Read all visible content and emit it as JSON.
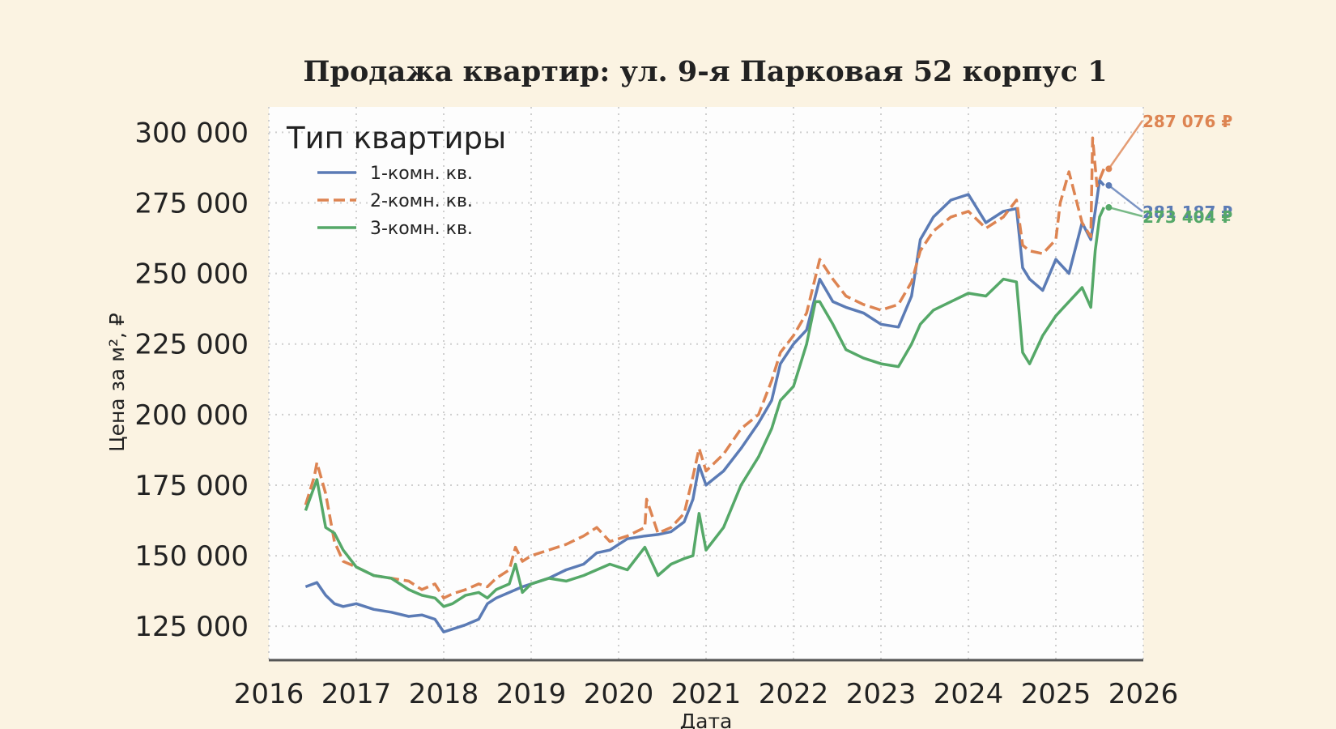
{
  "chart_data": {
    "type": "line",
    "title": "Продажа квартир: ул. 9-я Парковая 52 корпус 1",
    "xlabel": "Дата",
    "ylabel": "Цена за м², ₽",
    "xlim": [
      2016,
      2026
    ],
    "ylim": [
      113000,
      309000
    ],
    "x_ticks": [
      "2016",
      "2017",
      "2018",
      "2019",
      "2020",
      "2021",
      "2022",
      "2023",
      "2024",
      "2025",
      "2026"
    ],
    "y_ticks": [
      {
        "value": 125000,
        "label": "125 000"
      },
      {
        "value": 150000,
        "label": "150 000"
      },
      {
        "value": 175000,
        "label": "175 000"
      },
      {
        "value": 200000,
        "label": "200 000"
      },
      {
        "value": 225000,
        "label": "225 000"
      },
      {
        "value": 250000,
        "label": "250 000"
      },
      {
        "value": 275000,
        "label": "275 000"
      },
      {
        "value": 300000,
        "label": "300 000"
      }
    ],
    "grid": true,
    "legend": {
      "title": "Тип квартиры",
      "position": "top-left"
    },
    "series": [
      {
        "name": "1-комн. кв.",
        "color": "#5b7bb5",
        "dash": "solid",
        "x": [
          2016.42,
          2016.55,
          2016.65,
          2016.75,
          2016.85,
          2017.0,
          2017.2,
          2017.4,
          2017.6,
          2017.75,
          2017.9,
          2018.0,
          2018.1,
          2018.25,
          2018.4,
          2018.5,
          2018.6,
          2018.75,
          2018.9,
          2019.0,
          2019.2,
          2019.4,
          2019.6,
          2019.75,
          2019.9,
          2020.1,
          2020.3,
          2020.45,
          2020.6,
          2020.75,
          2020.85,
          2020.92,
          2021.0,
          2021.2,
          2021.4,
          2021.6,
          2021.75,
          2021.85,
          2022.0,
          2022.15,
          2022.3,
          2022.45,
          2022.6,
          2022.8,
          2023.0,
          2023.2,
          2023.35,
          2023.45,
          2023.6,
          2023.8,
          2024.0,
          2024.2,
          2024.4,
          2024.55,
          2024.62,
          2024.7,
          2024.85,
          2025.0,
          2025.15,
          2025.3,
          2025.4,
          2025.45,
          2025.5,
          2025.55
        ],
        "values": [
          139000,
          140500,
          136000,
          133000,
          132000,
          133000,
          131000,
          130000,
          128500,
          129000,
          127500,
          123000,
          124000,
          125500,
          127500,
          133000,
          135000,
          137000,
          139000,
          140000,
          142000,
          145000,
          147000,
          151000,
          152000,
          156000,
          157000,
          157500,
          158500,
          162000,
          170000,
          182000,
          175000,
          180000,
          188000,
          197000,
          205000,
          218000,
          225000,
          230000,
          248000,
          240000,
          238000,
          236000,
          232000,
          231000,
          242000,
          262000,
          270000,
          276000,
          278000,
          268000,
          272000,
          273000,
          252000,
          248000,
          244000,
          255000,
          250000,
          268000,
          262000,
          272000,
          283000,
          281187
        ]
      },
      {
        "name": "2-комн. кв.",
        "color": "#dd8452",
        "dash": "dashed",
        "x": [
          2016.42,
          2016.52,
          2016.55,
          2016.65,
          2016.75,
          2016.85,
          2017.0,
          2017.2,
          2017.4,
          2017.6,
          2017.75,
          2017.9,
          2018.0,
          2018.1,
          2018.25,
          2018.4,
          2018.5,
          2018.6,
          2018.75,
          2018.82,
          2018.9,
          2019.0,
          2019.2,
          2019.4,
          2019.6,
          2019.75,
          2019.9,
          2020.1,
          2020.3,
          2020.32,
          2020.45,
          2020.6,
          2020.75,
          2020.85,
          2020.92,
          2021.0,
          2021.2,
          2021.4,
          2021.6,
          2021.75,
          2021.85,
          2022.0,
          2022.15,
          2022.3,
          2022.45,
          2022.6,
          2022.8,
          2023.0,
          2023.2,
          2023.35,
          2023.45,
          2023.6,
          2023.8,
          2024.0,
          2024.2,
          2024.4,
          2024.55,
          2024.62,
          2024.7,
          2024.85,
          2025.0,
          2025.05,
          2025.15,
          2025.3,
          2025.4,
          2025.42,
          2025.47,
          2025.55
        ],
        "values": [
          168000,
          178000,
          183000,
          172000,
          155000,
          148000,
          146000,
          143000,
          142000,
          141000,
          138000,
          140000,
          135000,
          136500,
          138000,
          140000,
          139000,
          142000,
          145000,
          153000,
          148000,
          150000,
          152000,
          154000,
          157000,
          160000,
          155000,
          157000,
          160000,
          170000,
          158000,
          160000,
          165000,
          178000,
          188000,
          180000,
          186000,
          195000,
          200000,
          212000,
          222000,
          228000,
          236000,
          255000,
          248000,
          242000,
          239000,
          237000,
          239000,
          247000,
          258000,
          265000,
          270000,
          272000,
          266000,
          270000,
          276000,
          260000,
          258000,
          257000,
          262000,
          275000,
          286000,
          268000,
          263000,
          298000,
          281000,
          287076
        ]
      },
      {
        "name": "3-комн. кв.",
        "color": "#55a868",
        "dash": "solid",
        "x": [
          2016.42,
          2016.55,
          2016.65,
          2016.75,
          2016.85,
          2017.0,
          2017.2,
          2017.4,
          2017.6,
          2017.75,
          2017.9,
          2018.0,
          2018.1,
          2018.25,
          2018.4,
          2018.5,
          2018.6,
          2018.75,
          2018.82,
          2018.9,
          2019.0,
          2019.2,
          2019.4,
          2019.6,
          2019.75,
          2019.9,
          2020.1,
          2020.3,
          2020.45,
          2020.6,
          2020.75,
          2020.85,
          2020.92,
          2021.0,
          2021.2,
          2021.4,
          2021.6,
          2021.75,
          2021.85,
          2022.0,
          2022.15,
          2022.25,
          2022.3,
          2022.45,
          2022.6,
          2022.8,
          2023.0,
          2023.2,
          2023.35,
          2023.45,
          2023.6,
          2023.8,
          2024.0,
          2024.2,
          2024.4,
          2024.55,
          2024.62,
          2024.7,
          2024.85,
          2025.0,
          2025.15,
          2025.3,
          2025.4,
          2025.45,
          2025.5,
          2025.55
        ],
        "values": [
          166000,
          177000,
          160000,
          158000,
          152000,
          146000,
          143000,
          142000,
          138000,
          136000,
          135000,
          132000,
          133000,
          136000,
          137000,
          135000,
          138000,
          140000,
          147000,
          137000,
          140000,
          142000,
          141000,
          143000,
          145000,
          147000,
          145000,
          153000,
          143000,
          147000,
          149000,
          150000,
          165000,
          152000,
          160000,
          175000,
          185000,
          195000,
          205000,
          210000,
          225000,
          240000,
          240000,
          232000,
          223000,
          220000,
          218000,
          217000,
          225000,
          232000,
          237000,
          240000,
          243000,
          242000,
          248000,
          247000,
          222000,
          218000,
          228000,
          235000,
          240000,
          245000,
          238000,
          258000,
          270000,
          273404
        ]
      }
    ],
    "annotations": [
      {
        "series": "2-комн. кв.",
        "text": "287 076 ₽",
        "color": "#dd8452"
      },
      {
        "series": "1-комн. кв.",
        "text": "281 187 ₽",
        "color": "#5b7bb5"
      },
      {
        "series": "3-комн. кв.",
        "text": "273 404 ₽",
        "color": "#55a868"
      }
    ]
  }
}
